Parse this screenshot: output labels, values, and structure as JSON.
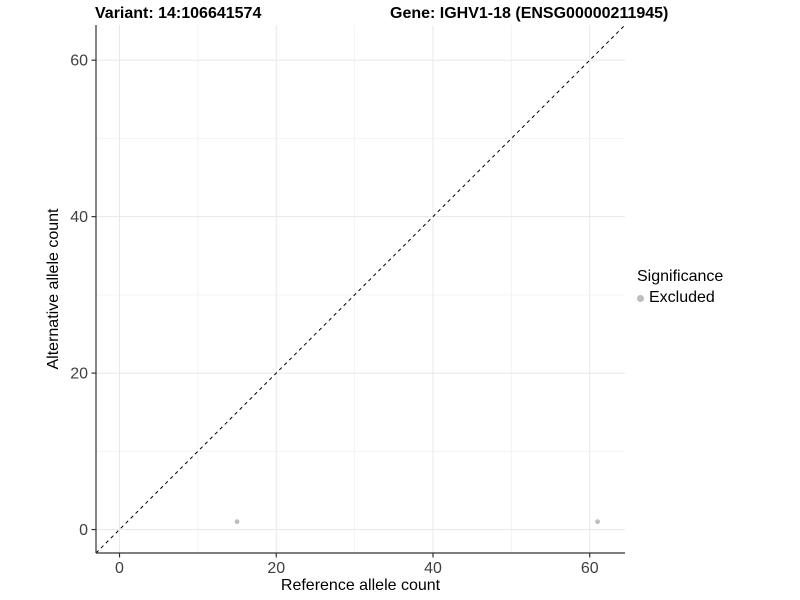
{
  "chart_data": {
    "type": "scatter",
    "title_left": "Variant: 14:106641574",
    "title_right": "Gene: IGHV1-18 (ENSG00000211945)",
    "xlabel": "Reference allele count",
    "ylabel": "Alternative allele count",
    "xlim": [
      -3,
      64.5
    ],
    "ylim": [
      -3,
      64.5
    ],
    "x_ticks": [
      0,
      20,
      40,
      60
    ],
    "y_ticks": [
      0,
      20,
      40,
      60
    ],
    "x_minor_ticks": [
      10,
      30,
      50
    ],
    "y_minor_ticks": [
      10,
      30,
      50
    ],
    "grid": "major+minor",
    "identity_line": {
      "style": "dashed",
      "from_xy": [
        -3,
        -3
      ],
      "to_xy": [
        64.5,
        64.5
      ],
      "color": "#000000"
    },
    "series": [
      {
        "name": "Excluded",
        "color": "#bebebe",
        "points": [
          {
            "x": 15,
            "y": 1
          },
          {
            "x": 61,
            "y": 1
          }
        ]
      }
    ],
    "legend": {
      "title": "Significance",
      "position": "right",
      "items": [
        {
          "label": "Excluded",
          "color": "#bebebe"
        }
      ]
    },
    "colors": {
      "background": "#ffffff",
      "grid_major": "#e8e8e8",
      "grid_minor": "#f3f3f3",
      "axis_line": "#333333",
      "tick_label": "#404040"
    }
  }
}
